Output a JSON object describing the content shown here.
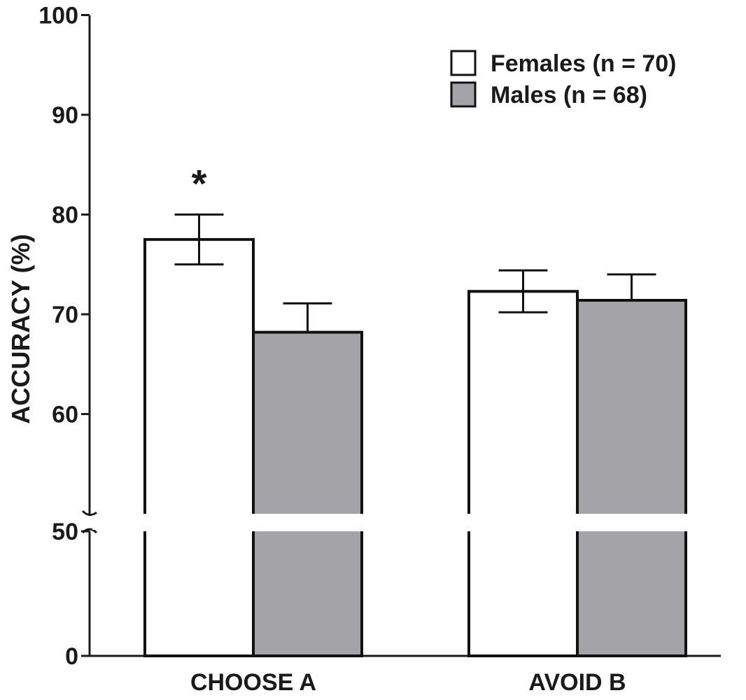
{
  "chart_data": {
    "type": "bar",
    "title": "",
    "xlabel": "",
    "ylabel": "ACCURACY (%)",
    "categories": [
      "CHOOSE A",
      "AVOID B"
    ],
    "series": [
      {
        "name": "Females (n = 70)",
        "values": [
          77.5,
          72.3
        ],
        "errors": [
          2.5,
          2.1
        ],
        "color": "#ffffff"
      },
      {
        "name": "Males (n = 68)",
        "values": [
          68.2,
          71.4
        ],
        "errors": [
          2.9,
          2.6
        ],
        "color": "#a4a4a8"
      }
    ],
    "y_ticks": [
      0,
      50,
      60,
      70,
      80,
      90,
      100
    ],
    "y_tick_labels": [
      "0",
      "50",
      "60",
      "70",
      "80",
      "90",
      "100"
    ],
    "ylim": [
      0,
      100
    ],
    "axis_break": [
      50,
      50
    ],
    "grid": false,
    "legend_position": "top-right",
    "annotations": [
      {
        "text": "*",
        "category": "CHOOSE A",
        "series": "Females (n = 70)"
      }
    ],
    "colors": {
      "axis": "#1a1a1a",
      "bar_stroke": "#111111"
    }
  }
}
